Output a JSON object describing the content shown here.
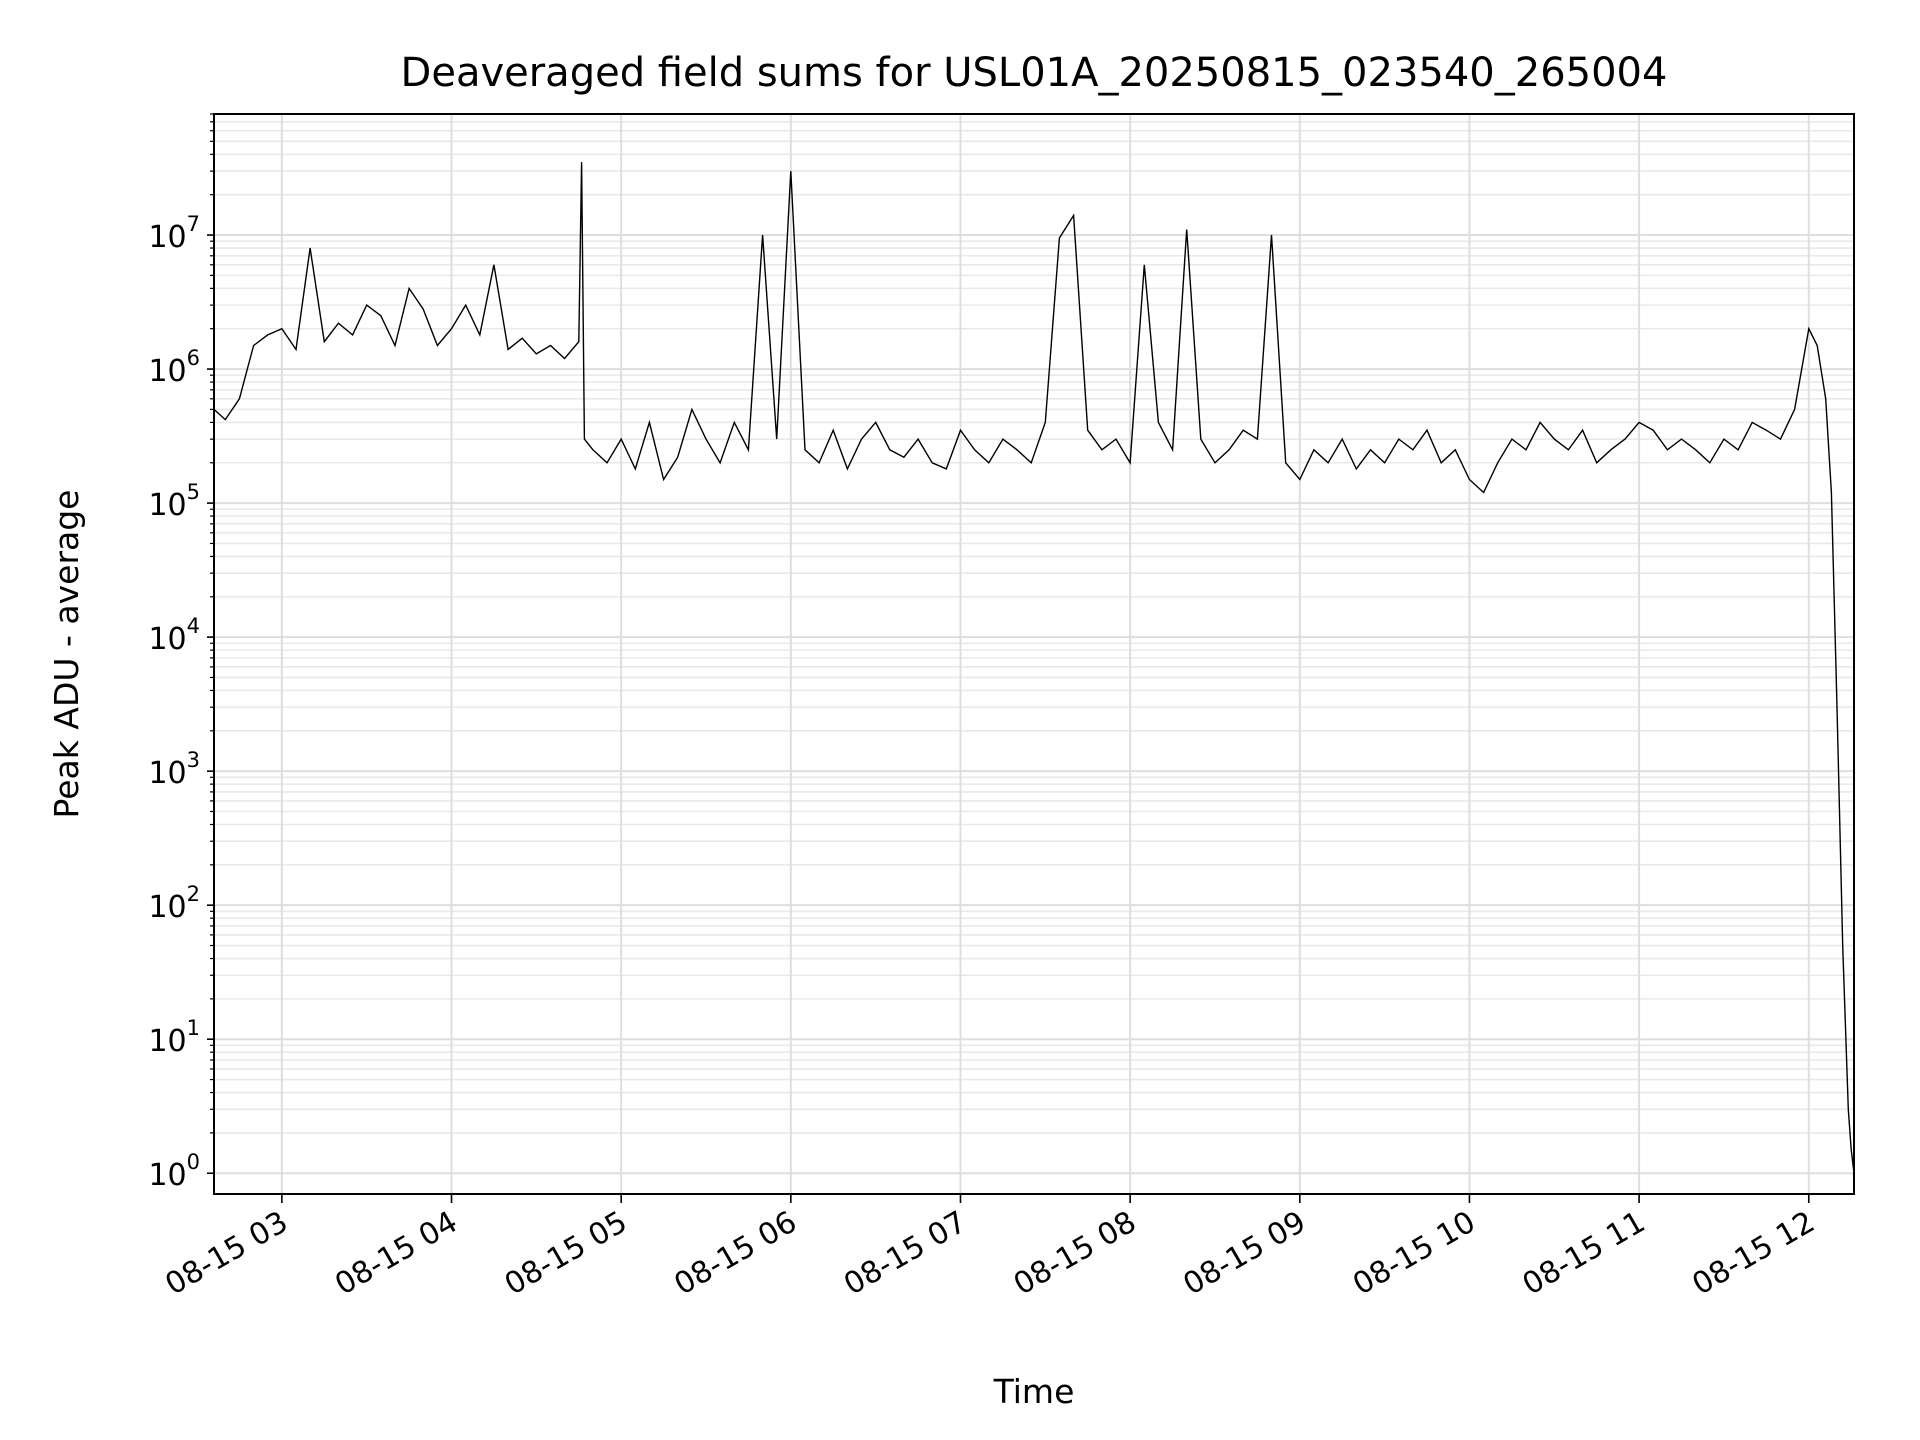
{
  "chart_data": {
    "type": "line",
    "title": "Deaveraged field sums for USL01A_20250815_023540_265004",
    "xlabel": "Time",
    "ylabel": "Peak ADU - average",
    "yscale": "log",
    "x_tick_labels": [
      "08-15 03",
      "08-15 04",
      "08-15 05",
      "08-15 06",
      "08-15 07",
      "08-15 08",
      "08-15 09",
      "08-15 10",
      "08-15 11",
      "08-15 12"
    ],
    "y_tick_labels": [
      {
        "base": "10",
        "exp": "0"
      },
      {
        "base": "10",
        "exp": "1"
      },
      {
        "base": "10",
        "exp": "2"
      },
      {
        "base": "10",
        "exp": "3"
      },
      {
        "base": "10",
        "exp": "4"
      },
      {
        "base": "10",
        "exp": "5"
      },
      {
        "base": "10",
        "exp": "6"
      },
      {
        "base": "10",
        "exp": "7"
      }
    ],
    "xlim": [
      "2025-08-15 02:36",
      "2025-08-15 12:16"
    ],
    "ylim": [
      0.7,
      80000000
    ],
    "grid": "major and minor",
    "legend": "none",
    "line_color": "#000000",
    "series": [
      {
        "x": [
          "02:36",
          "02:40",
          "02:45",
          "02:50",
          "02:55",
          "03:00",
          "03:05",
          "03:10",
          "03:15",
          "03:20",
          "03:25",
          "03:30",
          "03:35",
          "03:40",
          "03:45",
          "03:50",
          "03:55",
          "04:00",
          "04:05",
          "04:10",
          "04:15",
          "04:20",
          "04:25",
          "04:30",
          "04:35",
          "04:40",
          "04:45",
          "04:46",
          "04:47",
          "04:50",
          "04:55",
          "05:00",
          "05:05",
          "05:10",
          "05:15",
          "05:20",
          "05:25",
          "05:30",
          "05:35",
          "05:40",
          "05:45",
          "05:50",
          "05:55",
          "06:00",
          "06:05",
          "06:10",
          "06:15",
          "06:20",
          "06:25",
          "06:30",
          "06:35",
          "06:40",
          "06:45",
          "06:50",
          "06:55",
          "07:00",
          "07:05",
          "07:10",
          "07:15",
          "07:20",
          "07:25",
          "07:30",
          "07:35",
          "07:40",
          "07:45",
          "07:50",
          "07:55",
          "08:00",
          "08:05",
          "08:10",
          "08:15",
          "08:20",
          "08:25",
          "08:30",
          "08:35",
          "08:40",
          "08:45",
          "08:50",
          "08:55",
          "09:00",
          "09:05",
          "09:10",
          "09:15",
          "09:20",
          "09:25",
          "09:30",
          "09:35",
          "09:40",
          "09:45",
          "09:50",
          "09:55",
          "10:00",
          "10:05",
          "10:10",
          "10:15",
          "10:20",
          "10:25",
          "10:30",
          "10:35",
          "10:40",
          "10:45",
          "10:50",
          "10:55",
          "11:00",
          "11:05",
          "11:10",
          "11:15",
          "11:20",
          "11:25",
          "11:30",
          "11:35",
          "11:40",
          "11:45",
          "11:50",
          "11:55",
          "12:00",
          "12:03",
          "12:06",
          "12:08",
          "12:10",
          "12:12",
          "12:14",
          "12:15",
          "12:16"
        ],
        "y": [
          500000,
          420000,
          600000,
          1500000,
          1800000,
          2000000,
          1400000,
          8000000,
          1600000,
          2200000,
          1800000,
          3000000,
          2500000,
          1500000,
          4000000,
          2800000,
          1500000,
          2000000,
          3000000,
          1800000,
          6000000,
          1400000,
          1700000,
          1300000,
          1500000,
          1200000,
          1600000,
          35000000,
          300000,
          250000,
          200000,
          300000,
          180000,
          400000,
          150000,
          220000,
          500000,
          300000,
          200000,
          400000,
          250000,
          10000000,
          300000,
          30000000,
          250000,
          200000,
          350000,
          180000,
          300000,
          400000,
          250000,
          220000,
          300000,
          200000,
          180000,
          350000,
          250000,
          200000,
          300000,
          250000,
          200000,
          400000,
          9500000,
          14000000,
          350000,
          250000,
          300000,
          200000,
          6000000,
          400000,
          250000,
          11000000,
          300000,
          200000,
          250000,
          350000,
          300000,
          10000000,
          200000,
          150000,
          250000,
          200000,
          300000,
          180000,
          250000,
          200000,
          300000,
          250000,
          350000,
          200000,
          250000,
          150000,
          120000,
          200000,
          300000,
          250000,
          400000,
          300000,
          250000,
          350000,
          200000,
          250000,
          300000,
          400000,
          350000,
          250000,
          300000,
          250000,
          200000,
          300000,
          250000,
          400000,
          350000,
          300000,
          500000,
          2000000,
          1500000,
          600000,
          120000,
          3000,
          50,
          3,
          1.5,
          1
        ]
      }
    ]
  }
}
